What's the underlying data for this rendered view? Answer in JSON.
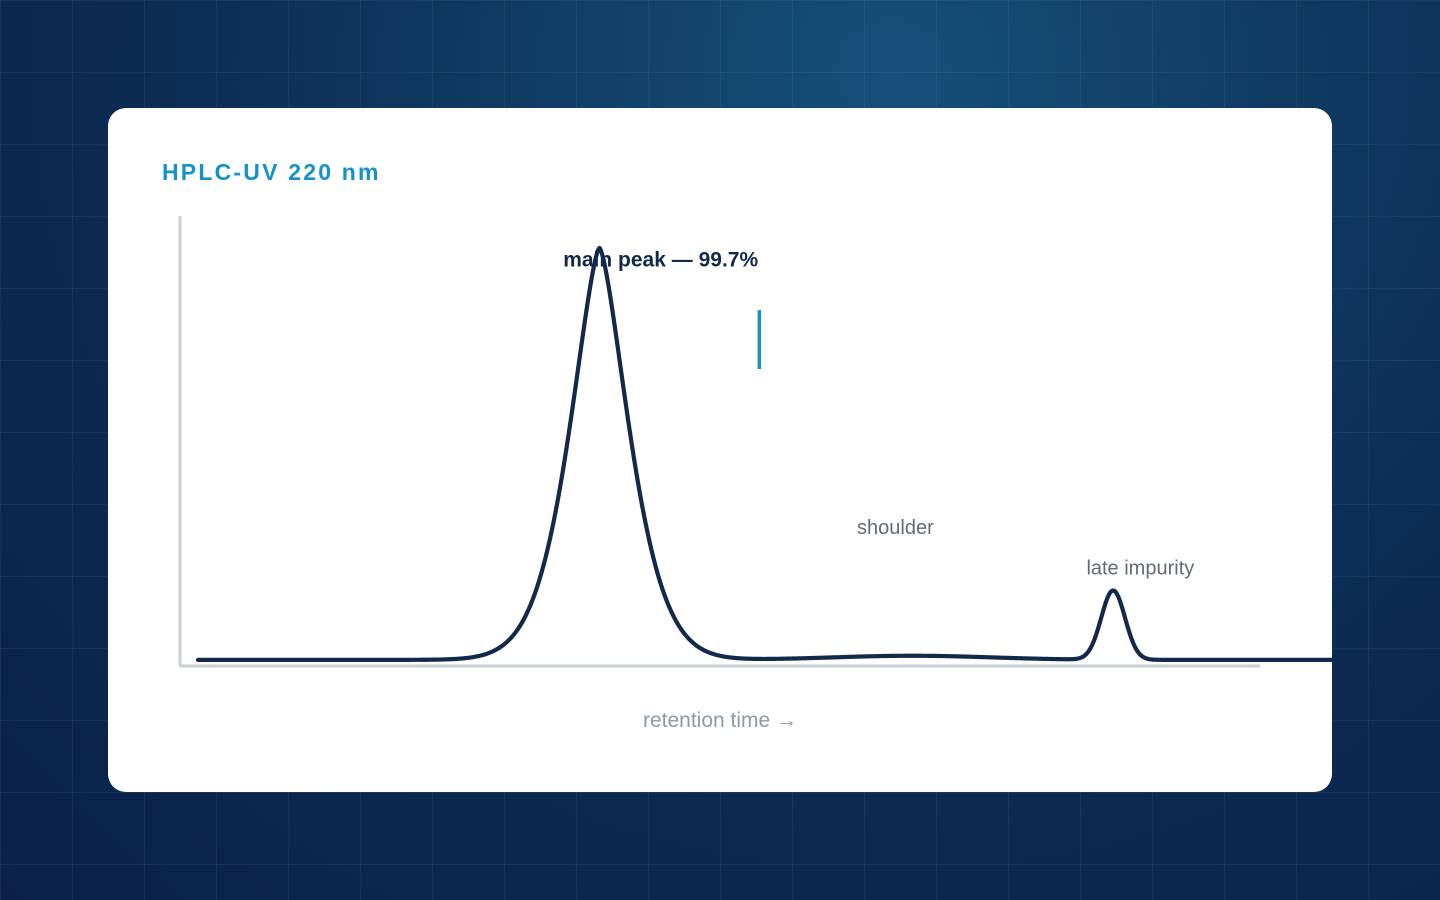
{
  "chart_data": {
    "type": "line",
    "title": "HPLC-UV 220 nm",
    "xlabel": "retention time →",
    "ylabel": "",
    "xlim": [
      0,
      100
    ],
    "ylim": [
      0,
      100
    ],
    "grid": false,
    "series": [
      {
        "peaks": [
          {
            "center": 35.4,
            "height": 100,
            "sigma": 2.4,
            "power": 1.5
          },
          {
            "center": 63.0,
            "height": 1.0,
            "sigma": 7.0,
            "power": 2
          },
          {
            "center": 80.7,
            "height": 16.8,
            "sigma": 1.05,
            "power": 2
          }
        ],
        "baseline": 1.0,
        "color": "#13294a"
      }
    ],
    "annotations": [
      {
        "id": "main",
        "text": "main peak — 99.7%",
        "x": 40.8,
        "y": 96.5,
        "kind": "label-bold"
      },
      {
        "id": "shoulder",
        "text": "shoulder",
        "x": 61.5,
        "y": 31.5,
        "kind": "label"
      },
      {
        "id": "late",
        "text": "late impurity",
        "x": 83.1,
        "y": 21.7,
        "kind": "label"
      }
    ],
    "marker": {
      "x": 49.5,
      "y_from": 71.6,
      "y_to": 85.9,
      "color": "#1593c8"
    }
  },
  "colors": {
    "accent": "#1593c8",
    "trace": "#13294a",
    "axis": "#c9cfd6"
  }
}
